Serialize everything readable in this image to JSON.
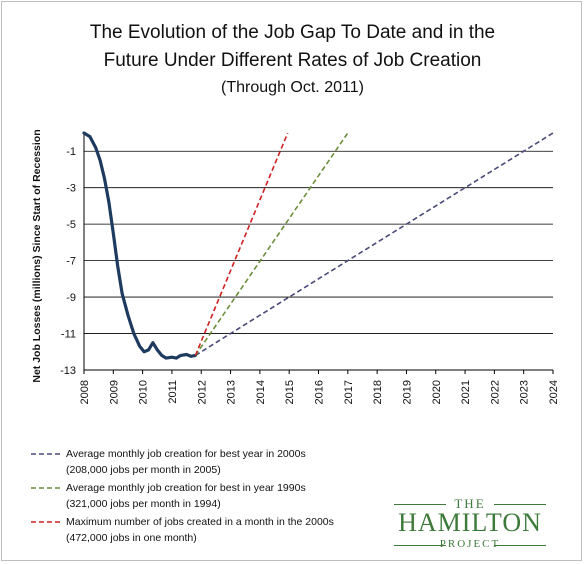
{
  "chart_data": {
    "type": "line",
    "title": "The Evolution of the Job Gap To Date and in the",
    "title_line2": "Future Under Different Rates of Job Creation",
    "subtitle": "(Through Oct. 2011)",
    "ylabel": "Net Job Losses (millions) Since Start of Recession",
    "xlabel": "",
    "x_ticks": [
      "2008",
      "2009",
      "2010",
      "2011",
      "2012",
      "2013",
      "2014",
      "2015",
      "2016",
      "2017",
      "2018",
      "2019",
      "2020",
      "2021",
      "2022",
      "2023",
      "2024"
    ],
    "y_ticks": [
      "-1",
      "-3",
      "-5",
      "-7",
      "-9",
      "-11",
      "-13"
    ],
    "ylim": [
      -13,
      0
    ],
    "xlim": [
      2008,
      2024
    ],
    "grid": "horizontal",
    "legend_position": "bottom",
    "series": [
      {
        "key": "actual",
        "color": "#1f3a5f",
        "style": "solid",
        "x": [
          2008.0,
          2008.2,
          2008.4,
          2008.55,
          2008.7,
          2008.85,
          2009.0,
          2009.15,
          2009.3,
          2009.5,
          2009.7,
          2009.9,
          2010.05,
          2010.2,
          2010.35,
          2010.5,
          2010.65,
          2010.8,
          2011.0,
          2011.15,
          2011.3,
          2011.5,
          2011.65,
          2011.8
        ],
        "values": [
          0.0,
          -0.2,
          -0.8,
          -1.5,
          -2.5,
          -3.8,
          -5.5,
          -7.3,
          -8.8,
          -10.0,
          -11.0,
          -11.7,
          -12.0,
          -11.9,
          -11.5,
          -11.9,
          -12.2,
          -12.35,
          -12.3,
          -12.35,
          -12.2,
          -12.15,
          -12.25,
          -12.2
        ]
      },
      {
        "key": "best_2000s",
        "color": "#4a4a7a",
        "style": "dashed",
        "x": [
          2011.8,
          2024.0
        ],
        "values": [
          -12.2,
          0.0
        ]
      },
      {
        "key": "best_1990s",
        "color": "#6b8e3a",
        "style": "dashed",
        "x": [
          2011.8,
          2017.0
        ],
        "values": [
          -12.2,
          0.0
        ]
      },
      {
        "key": "max_2000s",
        "color": "#d02020",
        "style": "dashed",
        "x": [
          2011.8,
          2014.95
        ],
        "values": [
          -12.2,
          0.0
        ]
      }
    ],
    "legend": [
      {
        "series": "best_2000s",
        "line1": "Average monthly job creation for best year in 2000s",
        "line2": "(208,000 jobs per month in 2005)"
      },
      {
        "series": "best_1990s",
        "line1": "Average monthly job creation for best in year 1990s",
        "line2": "(321,000 jobs per month in 1994)"
      },
      {
        "series": "max_2000s",
        "line1": "Maximum number of jobs created in a month  in the 2000s",
        "line2": "(472,000 jobs in one month)"
      }
    ]
  },
  "logo": {
    "the": "THE",
    "name": "HAMILTON",
    "project": "PROJECT",
    "color": "#3d7a3a"
  }
}
